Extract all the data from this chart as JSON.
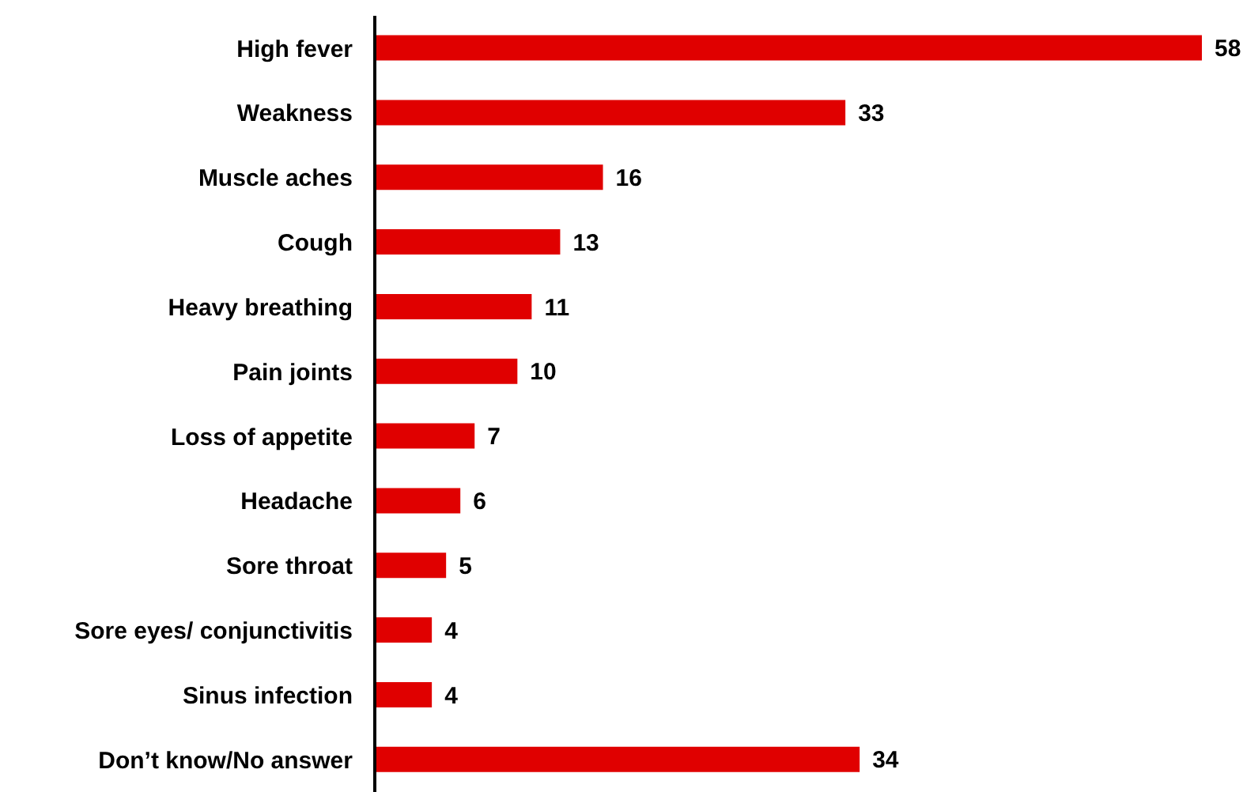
{
  "chart_data": {
    "type": "bar",
    "orientation": "horizontal",
    "categories": [
      "High fever",
      "Weakness",
      "Muscle aches",
      "Cough",
      "Heavy breathing",
      "Pain joints",
      "Loss of appetite",
      "Headache",
      "Sore throat",
      "Sore eyes/ conjunctivitis",
      "Sinus infection",
      "Don’t know/No answer"
    ],
    "values": [
      58,
      33,
      16,
      13,
      11,
      10,
      7,
      6,
      5,
      4,
      4,
      34
    ],
    "color": "#e00000",
    "data_labels": true,
    "tick_labels": "y"
  }
}
